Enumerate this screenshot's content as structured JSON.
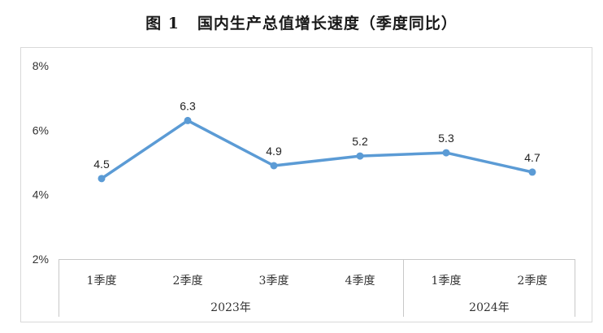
{
  "figure": {
    "number": "图 1",
    "title": "国内生产总值增长速度（季度同比）"
  },
  "chart_data": {
    "type": "line",
    "categories": [
      "1季度",
      "2季度",
      "3季度",
      "4季度",
      "1季度",
      "2季度"
    ],
    "category_groups": [
      {
        "label": "2023年",
        "span": 4
      },
      {
        "label": "2024年",
        "span": 2
      }
    ],
    "series": [
      {
        "values": [
          4.5,
          6.3,
          4.9,
          5.2,
          5.3,
          4.7
        ]
      }
    ],
    "data_labels": [
      "4.5",
      "6.3",
      "4.9",
      "5.2",
      "5.3",
      "4.7"
    ],
    "yticks": [
      "2%",
      "4%",
      "6%",
      "8%"
    ],
    "ylim": [
      2,
      8
    ],
    "grid": false,
    "legend": "none",
    "line_color": "#5b9bd5",
    "border_color": "#d9d9d9",
    "axis_color": "#c8c8c8"
  }
}
